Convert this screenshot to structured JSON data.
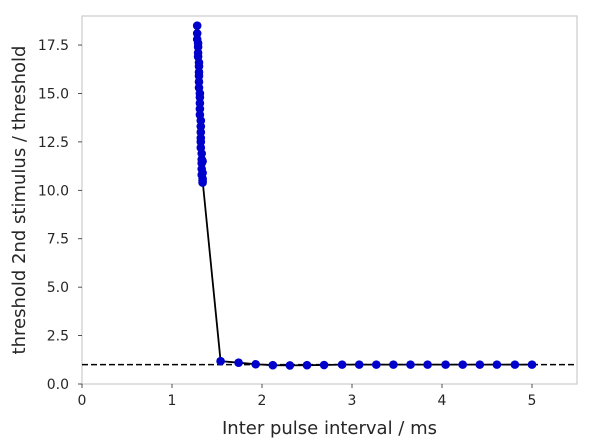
{
  "chart_data": {
    "type": "scatter",
    "title": "",
    "xlabel": "Inter pulse interval / ms",
    "ylabel": "threshold 2nd stimulus / threshold",
    "xlim": [
      0,
      5.5
    ],
    "ylim": [
      0,
      19
    ],
    "x_ticks": [
      0,
      1,
      2,
      3,
      4,
      5
    ],
    "x_tick_labels": [
      "0",
      "1",
      "2",
      "3",
      "4",
      "5"
    ],
    "y_ticks": [
      0.0,
      2.5,
      5.0,
      7.5,
      10.0,
      12.5,
      15.0,
      17.5
    ],
    "y_tick_labels": [
      "0.0",
      "2.5",
      "5.0",
      "7.5",
      "10.0",
      "12.5",
      "15.0",
      "17.5"
    ],
    "grid": false,
    "colors": {
      "marker": "#0000cc",
      "line": "#000000",
      "reference": "#000000",
      "frame": "#cccccc"
    },
    "reference_line": {
      "y": 1.0,
      "style": "dashed"
    },
    "series": [
      {
        "x": [
          1.28,
          1.28,
          1.28,
          1.29,
          1.29,
          1.29,
          1.29,
          1.3,
          1.3,
          1.3,
          1.3,
          1.3,
          1.3,
          1.31,
          1.31,
          1.31,
          1.31,
          1.31,
          1.32,
          1.32,
          1.32,
          1.32,
          1.32,
          1.32,
          1.33,
          1.33,
          1.33,
          1.33,
          1.33,
          1.34,
          1.34,
          1.34,
          1.34,
          1.34,
          1.54,
          1.74,
          1.93,
          2.12,
          2.31,
          2.5,
          2.69,
          2.89,
          3.08,
          3.27,
          3.46,
          3.65,
          3.84,
          4.04,
          4.23,
          4.42,
          4.61,
          4.81,
          5.0
        ],
        "y": [
          18.5,
          18.1,
          17.8,
          17.6,
          17.4,
          17.1,
          16.9,
          16.6,
          16.4,
          16.1,
          15.9,
          15.6,
          15.3,
          15.0,
          14.8,
          14.5,
          14.2,
          13.9,
          13.6,
          13.3,
          13.0,
          12.7,
          12.5,
          12.2,
          11.9,
          11.6,
          11.4,
          11.1,
          10.8,
          10.6,
          10.4,
          11.5,
          10.9,
          10.5,
          1.18,
          1.1,
          1.02,
          0.97,
          0.96,
          0.97,
          0.98,
          1.0,
          1.0,
          1.0,
          1.0,
          1.0,
          1.0,
          1.0,
          1.0,
          1.0,
          1.0,
          1.0,
          1.0
        ]
      }
    ]
  }
}
